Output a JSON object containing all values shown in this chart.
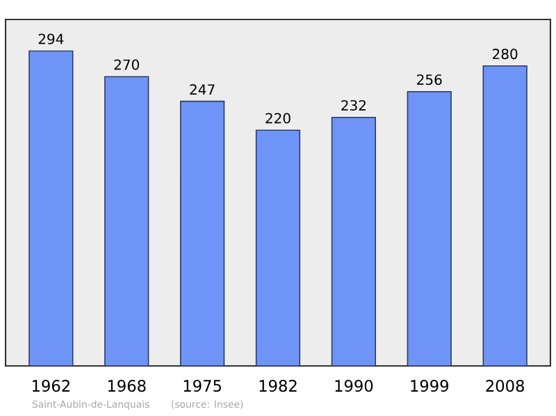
{
  "chart_data": {
    "type": "bar",
    "categories": [
      "1962",
      "1968",
      "1975",
      "1982",
      "1990",
      "1999",
      "2008"
    ],
    "values": [
      294,
      270,
      247,
      220,
      232,
      256,
      280
    ],
    "color": "#6f94f7",
    "data_labels": true,
    "annotations": [
      "Saint-Aubin-de-Lanquais",
      "(source: Insee)"
    ]
  }
}
